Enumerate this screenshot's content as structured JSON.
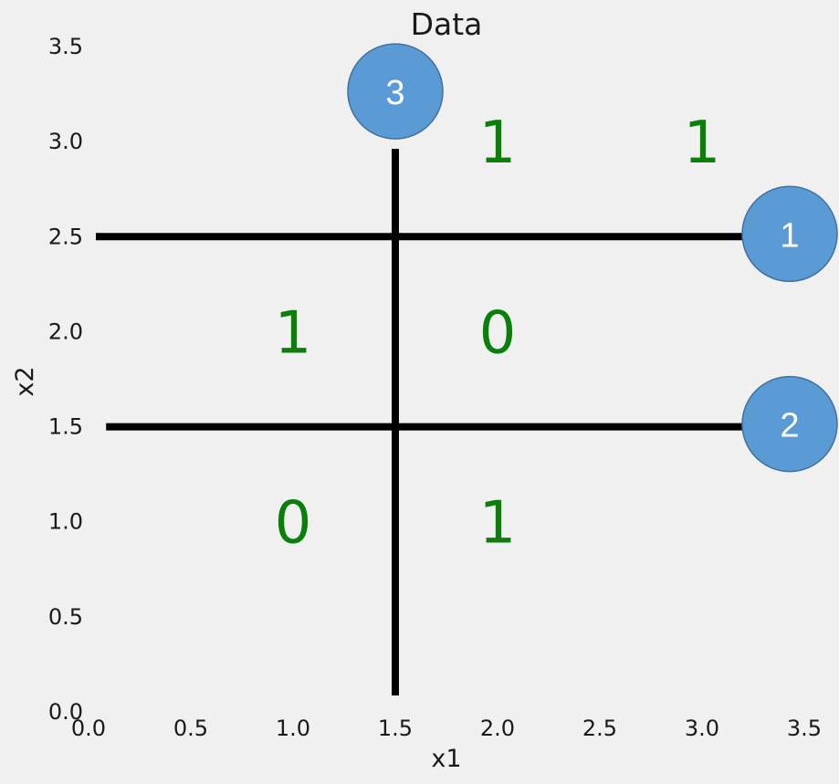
{
  "chart_data": {
    "type": "scatter",
    "title": "Data",
    "xlabel": "x1",
    "ylabel": "x2",
    "xlim": [
      0.0,
      3.5
    ],
    "ylim": [
      0.0,
      3.5
    ],
    "xticks": [
      "0.0",
      "0.5",
      "1.0",
      "1.5",
      "2.0",
      "2.5",
      "3.0",
      "3.5"
    ],
    "yticks": [
      "0.0",
      "0.5",
      "1.0",
      "1.5",
      "2.0",
      "2.5",
      "3.0",
      "3.5"
    ],
    "grid": false,
    "points": [
      {
        "x": 1.0,
        "y": 1.0,
        "label": "0"
      },
      {
        "x": 2.0,
        "y": 1.0,
        "label": "1"
      },
      {
        "x": 1.0,
        "y": 2.0,
        "label": "1"
      },
      {
        "x": 2.0,
        "y": 2.0,
        "label": "0"
      },
      {
        "x": 2.0,
        "y": 3.0,
        "label": "1"
      },
      {
        "x": 3.0,
        "y": 3.0,
        "label": "1"
      }
    ],
    "split_lines": [
      {
        "orientation": "horizontal",
        "y": 2.5,
        "from": 0.0,
        "to": 3.5,
        "label": "1"
      },
      {
        "orientation": "horizontal",
        "y": 1.5,
        "from": 0.05,
        "to": 3.5,
        "label": "2"
      },
      {
        "orientation": "vertical",
        "x": 1.5,
        "from": 0.0,
        "to": 3.25,
        "label": "3"
      }
    ],
    "colors": {
      "point_label": "#0a7f0a",
      "split_line": "#000000",
      "split_marker_fill": "#5b9bd5",
      "split_marker_stroke": "#41719c"
    }
  }
}
